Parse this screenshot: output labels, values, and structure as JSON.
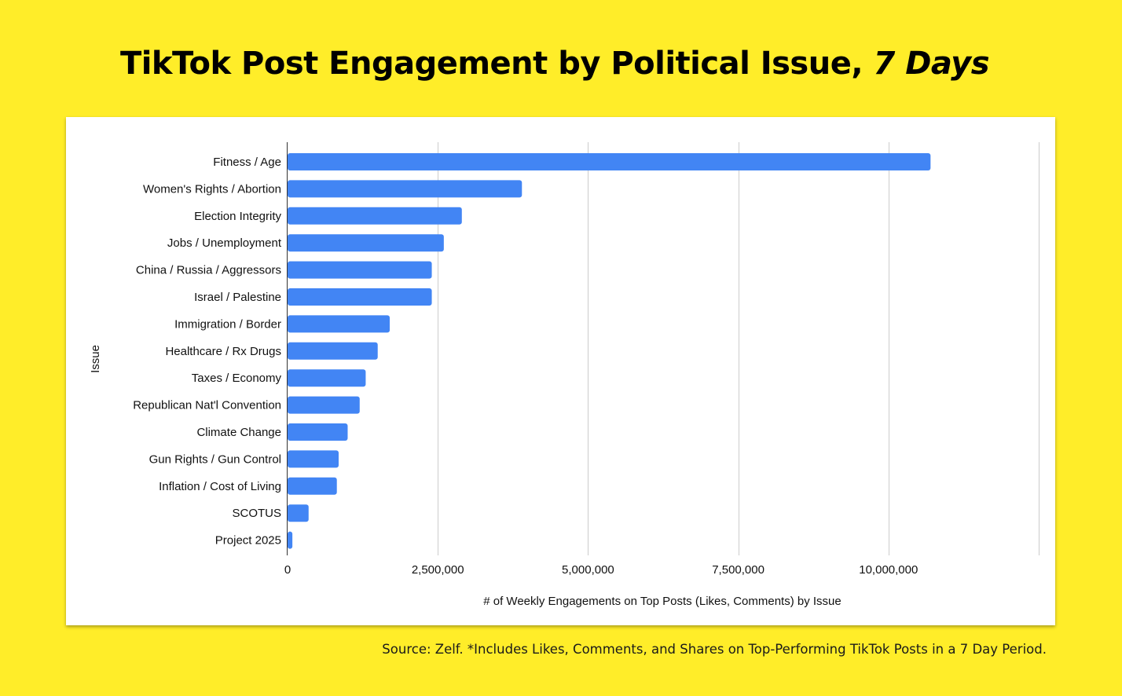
{
  "page": {
    "title_main": "TikTok Post Engagement by Political Issue, ",
    "title_em": "7 Days",
    "source": "Source: Zelf. *Includes Likes, Comments, and Shares on Top-Performing TikTok Posts in a 7 Day Period."
  },
  "colors": {
    "background": "#FFED29",
    "bar": "#4285F4",
    "card": "#FFFFFF"
  },
  "chart_data": {
    "type": "bar",
    "orientation": "horizontal",
    "xlabel": "# of Weekly Engagements on Top Posts  (Likes, Comments) by Issue",
    "ylabel": "Issue",
    "xlim": [
      0,
      12500000
    ],
    "xticks": [
      0,
      2500000,
      5000000,
      7500000,
      10000000
    ],
    "xtick_labels": [
      "0",
      "2,500,000",
      "5,000,000",
      "7,500,000",
      "10,000,000"
    ],
    "grid": true,
    "legend": "none",
    "categories": [
      "Fitness / Age",
      "Women's Rights / Abortion",
      "Election Integrity",
      "Jobs / Unemployment",
      "China / Russia / Aggressors",
      "Israel / Palestine",
      "Immigration / Border",
      "Healthcare / Rx Drugs",
      "Taxes / Economy",
      "Republican Nat'l Convention",
      "Climate Change",
      "Gun Rights / Gun Control",
      "Inflation / Cost of Living",
      "SCOTUS",
      "Project 2025"
    ],
    "values": [
      10700000,
      3900000,
      2900000,
      2600000,
      2400000,
      2400000,
      1700000,
      1500000,
      1300000,
      1200000,
      1000000,
      850000,
      820000,
      350000,
      80000
    ]
  }
}
